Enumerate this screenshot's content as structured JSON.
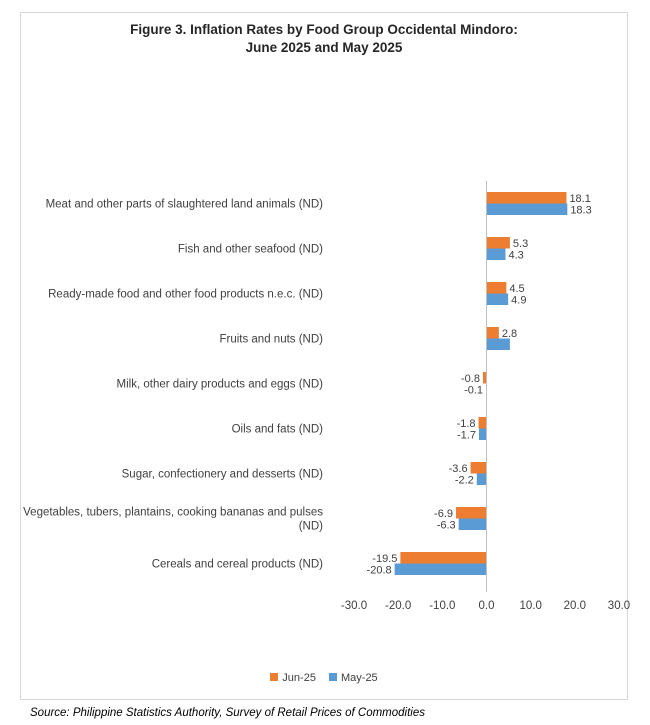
{
  "chart_data": {
    "type": "bar",
    "orientation": "horizontal",
    "title_lines": [
      "Figure 3. Inflation Rates by Food Group Occidental Mindoro:",
      "June 2025 and May 2025"
    ],
    "categories": [
      [
        "Meat and other parts of slaughtered land animals (ND)"
      ],
      [
        "Fish and other seafood (ND)"
      ],
      [
        "Ready-made food and other food products n.e.c. (ND)"
      ],
      [
        "Fruits and nuts (ND)"
      ],
      [
        "Milk, other dairy products and eggs (ND)"
      ],
      [
        "Oils and fats (ND)"
      ],
      [
        "Sugar, confectionery and desserts (ND)"
      ],
      [
        "Vegetables, tubers, plantains, cooking bananas and pulses",
        "(ND)"
      ],
      [
        "Cereals and cereal products (ND)"
      ]
    ],
    "series": [
      {
        "name": "Jun-25",
        "color": "#ED7D31",
        "values": [
          18.1,
          5.3,
          4.5,
          2.8,
          -0.8,
          -1.8,
          -3.6,
          -6.9,
          -19.5
        ],
        "labels": [
          "18.1",
          "5.3",
          "4.5",
          "2.8",
          "-0.8",
          "-1.8",
          "-3.6",
          "-6.9",
          "-19.5"
        ]
      },
      {
        "name": "May-25",
        "color": "#5B9BD5",
        "values": [
          18.3,
          4.3,
          4.9,
          5.3,
          -0.1,
          -1.7,
          -2.2,
          -6.3,
          -20.8
        ],
        "labels": [
          "18.3",
          "4.3",
          "4.9",
          "",
          "-0.1",
          "-1.7",
          "-2.2",
          "-6.3",
          "-20.8"
        ]
      }
    ],
    "xlim": [
      -30,
      30
    ],
    "xticks": [
      -30,
      -20,
      -10,
      0,
      10,
      20,
      30
    ],
    "xtick_labels": [
      "-30.0",
      "-20.0",
      "-10.0",
      "0.0",
      "10.0",
      "20.0",
      "30.0"
    ],
    "legend_position": "bottom",
    "grid": false
  },
  "source": "Source: Philippine Statistics Authority, Survey of Retail Prices of Commodities"
}
